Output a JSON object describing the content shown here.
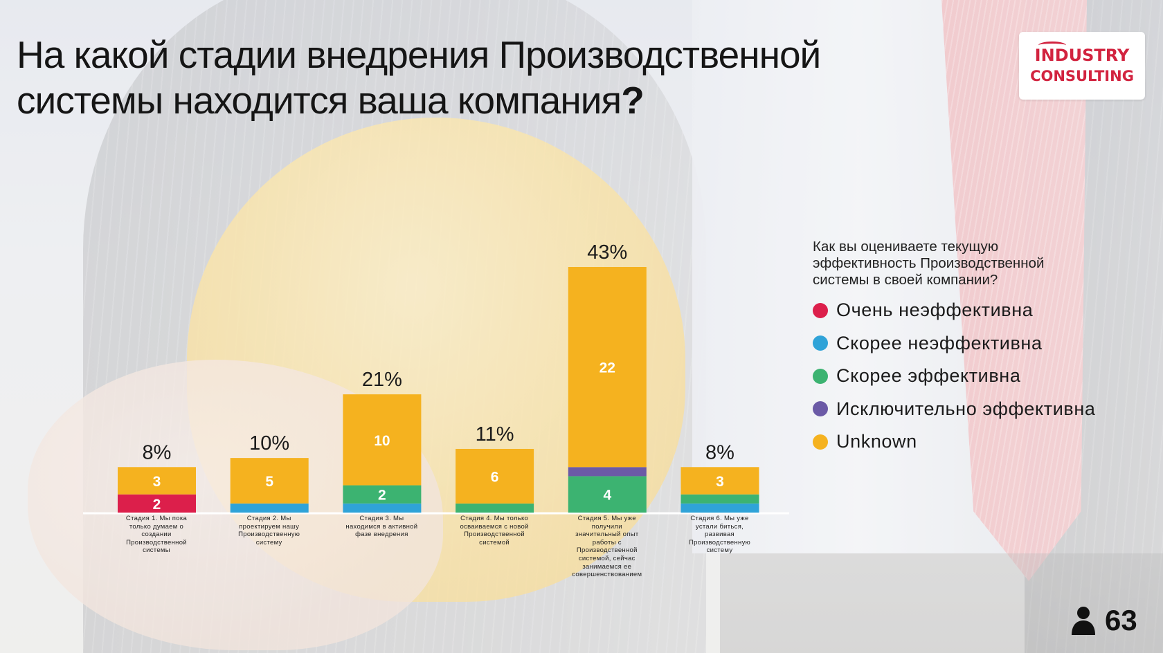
{
  "title": {
    "line1": "На какой стадии внедрения Производственной",
    "line2": "системы находится ваша компания",
    "qmark": "?"
  },
  "logo": {
    "line1": "INDUSTRY",
    "line2": "CONSULTING"
  },
  "legend": {
    "title": "Как вы оцениваете текущую эффективность Производственной системы в своей компании?",
    "items": [
      {
        "label": "Очень неэффективна",
        "color": "#dc1f4b"
      },
      {
        "label": "Скорее неэффективна",
        "color": "#2fa3d8"
      },
      {
        "label": "Скорее эффективна",
        "color": "#3cb371"
      },
      {
        "label": "Исключительно эффективна",
        "color": "#6b5aa6"
      },
      {
        "label": "Unknown",
        "color": "#f5b21f"
      }
    ]
  },
  "respondents": {
    "icon": "person-icon",
    "count": "63"
  },
  "chart_data": {
    "type": "bar",
    "stacked": true,
    "categories": [
      "Стадия 1. Мы пока только думаем о создании Производственной системы",
      "Стадия 2. Мы проектируем нашу Производственную систему",
      "Стадия 3. Мы находимся в активной фазе внедрения",
      "Стадия 4. Мы только осваиваемся с новой Производственной системой",
      "Стадия 5. Мы уже получили значительный опыт работы с Производственной системой, сейчас занимаемся ее совершенствованием",
      "Стадия 6. Мы уже устали биться, развивая Производственную систему"
    ],
    "totals_pct": [
      "8%",
      "10%",
      "21%",
      "11%",
      "43%",
      "8%"
    ],
    "series": [
      {
        "name": "Очень неэффективна",
        "color": "#dc1f4b",
        "values": [
          2,
          0,
          0,
          0,
          0,
          0
        ],
        "labels": [
          "2",
          "",
          "",
          "",
          "",
          ""
        ]
      },
      {
        "name": "Скорее неэффективна",
        "color": "#2fa3d8",
        "values": [
          0,
          1,
          1,
          0,
          0,
          1
        ],
        "labels": [
          "",
          "",
          "",
          "",
          "",
          ""
        ]
      },
      {
        "name": "Скорее эффективна",
        "color": "#3cb371",
        "values": [
          0,
          0,
          2,
          1,
          4,
          1
        ],
        "labels": [
          "",
          "",
          "2",
          "",
          "4",
          ""
        ]
      },
      {
        "name": "Исключительно эффективна",
        "color": "#6b5aa6",
        "values": [
          0,
          0,
          0,
          0,
          1,
          0
        ],
        "labels": [
          "",
          "",
          "",
          "",
          "",
          ""
        ]
      },
      {
        "name": "Unknown",
        "color": "#f5b21f",
        "values": [
          3,
          5,
          10,
          6,
          22,
          3
        ],
        "labels": [
          "3",
          "5",
          "10",
          "6",
          "22",
          "3"
        ]
      }
    ],
    "ylim": [
      0,
      27
    ],
    "grid": false,
    "legend_position": "right"
  }
}
